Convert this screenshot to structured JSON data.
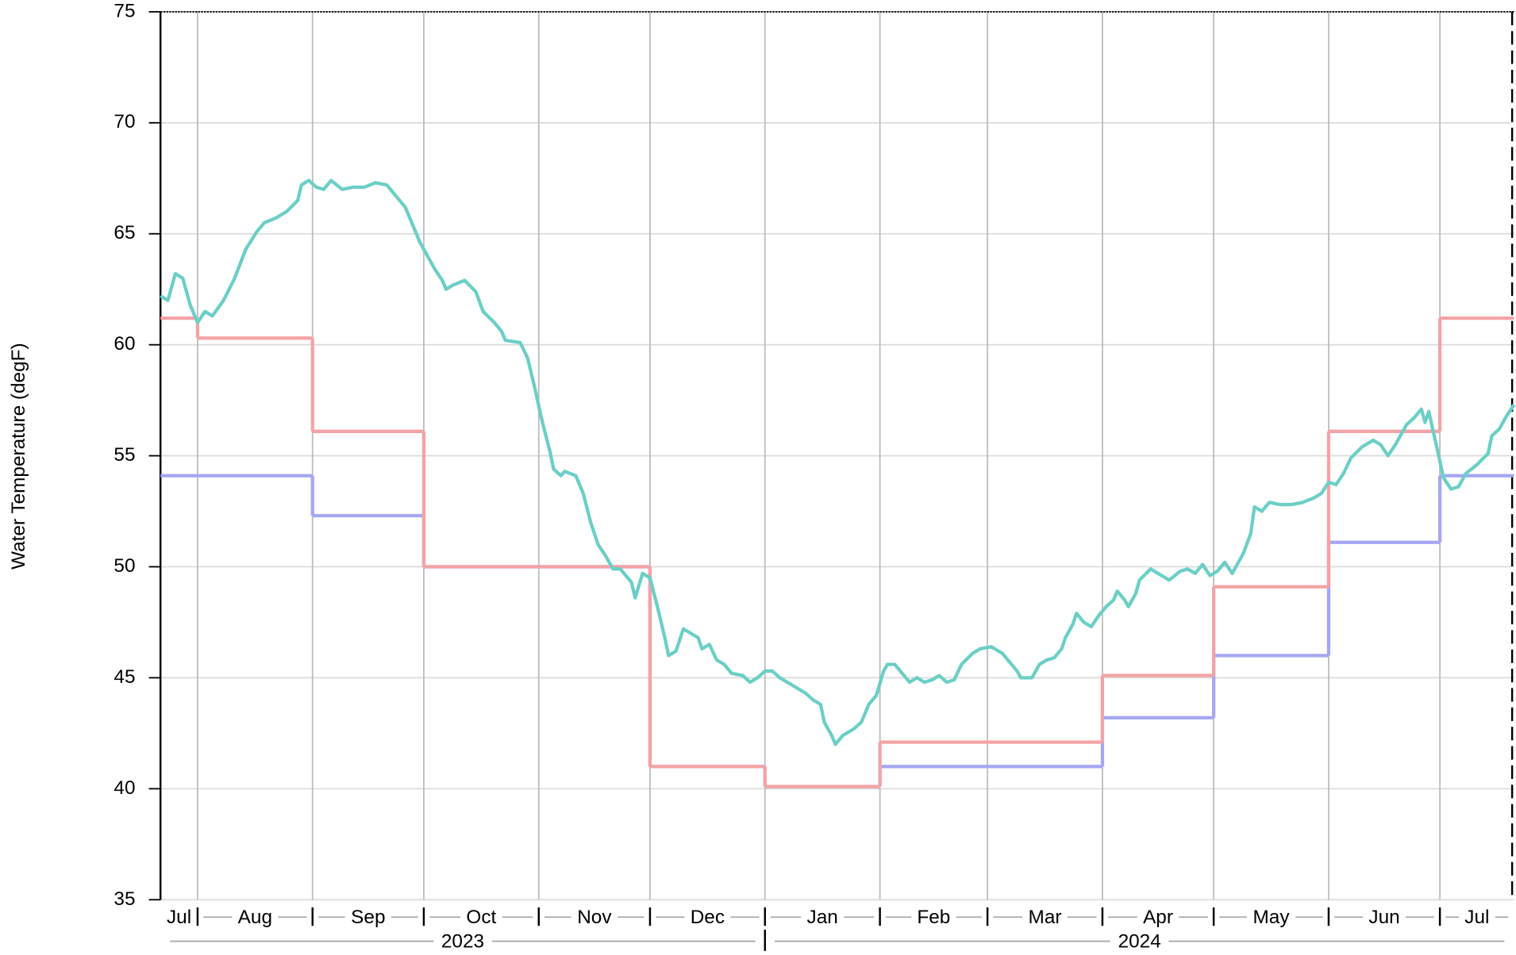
{
  "chart_data": {
    "type": "line",
    "y_label": "Water Temperature (degF)",
    "ylim": [
      35,
      75
    ],
    "yticks": [
      35,
      40,
      45,
      50,
      55,
      60,
      65,
      70,
      75
    ],
    "xlim": [
      "2023-07-22",
      "2024-07-21"
    ],
    "xticks": [
      "2023-08-01",
      "2023-09-01",
      "2023-10-01",
      "2023-11-01",
      "2023-12-01",
      "2024-01-01",
      "2024-02-01",
      "2024-03-01",
      "2024-04-01",
      "2024-05-01",
      "2024-06-01",
      "2024-07-01"
    ],
    "month_labels": [
      {
        "value": "2023-07",
        "label": "Jul"
      },
      {
        "value": "2023-08",
        "label": "Aug"
      },
      {
        "value": "2023-09",
        "label": "Sep"
      },
      {
        "value": "2023-10",
        "label": "Oct"
      },
      {
        "value": "2023-11",
        "label": "Nov"
      },
      {
        "value": "2023-12",
        "label": "Dec"
      },
      {
        "value": "2024-01",
        "label": "Jan"
      },
      {
        "value": "2024-02",
        "label": "Feb"
      },
      {
        "value": "2024-03",
        "label": "Mar"
      },
      {
        "value": "2024-04",
        "label": "Apr"
      },
      {
        "value": "2024-05",
        "label": "May"
      },
      {
        "value": "2024-06",
        "label": "Jun"
      },
      {
        "value": "2024-07",
        "label": "Jul"
      }
    ],
    "year_labels": [
      "2023",
      "2024"
    ],
    "grid": true,
    "series": [
      {
        "color": "#a6a6f4",
        "step": true,
        "x": [
          "2023-07",
          "2023-08",
          "2023-09",
          "2023-10",
          "2023-11",
          "2023-12",
          "2024-01",
          "2024-02",
          "2024-03",
          "2024-04",
          "2024-05",
          "2024-06",
          "2024-07"
        ],
        "values": [
          54.1,
          54.1,
          52.3,
          50.0,
          50.0,
          41.0,
          40.1,
          41.0,
          41.0,
          43.2,
          46.0,
          51.1,
          54.1
        ]
      },
      {
        "color": "#f5a3a6",
        "step": true,
        "x": [
          "2023-07",
          "2023-08",
          "2023-09",
          "2023-10",
          "2023-11",
          "2023-12",
          "2024-01",
          "2024-02",
          "2024-03",
          "2024-04",
          "2024-05",
          "2024-06",
          "2024-07"
        ],
        "values": [
          61.2,
          60.3,
          56.1,
          50.0,
          50.0,
          41.0,
          40.1,
          42.1,
          42.1,
          45.1,
          49.1,
          56.1,
          61.2
        ]
      },
      {
        "color": "#6bcfc6",
        "x": [
          "2023-07-22",
          "2023-07-24",
          "2023-07-26",
          "2023-07-28",
          "2023-07-30",
          "2023-08-01",
          "2023-08-03",
          "2023-08-05",
          "2023-08-08",
          "2023-08-11",
          "2023-08-14",
          "2023-08-17",
          "2023-08-19",
          "2023-08-22",
          "2023-08-25",
          "2023-08-28",
          "2023-08-29",
          "2023-08-31",
          "2023-09-02",
          "2023-09-04",
          "2023-09-06",
          "2023-09-09",
          "2023-09-12",
          "2023-09-15",
          "2023-09-18",
          "2023-09-21",
          "2023-09-23",
          "2023-09-26",
          "2023-09-28",
          "2023-09-30",
          "2023-10-02",
          "2023-10-04",
          "2023-10-06",
          "2023-10-07",
          "2023-10-09",
          "2023-10-12",
          "2023-10-15",
          "2023-10-17",
          "2023-10-20",
          "2023-10-22",
          "2023-10-23",
          "2023-10-27",
          "2023-10-29",
          "2023-10-31",
          "2023-11-02",
          "2023-11-04",
          "2023-11-05",
          "2023-11-07",
          "2023-11-08",
          "2023-11-11",
          "2023-11-13",
          "2023-11-15",
          "2023-11-17",
          "2023-11-19",
          "2023-11-21",
          "2023-11-23",
          "2023-11-26",
          "2023-11-27",
          "2023-11-29",
          "2023-12-01",
          "2023-12-03",
          "2023-12-05",
          "2023-12-06",
          "2023-12-08",
          "2023-12-10",
          "2023-12-12",
          "2023-12-14",
          "2023-12-15",
          "2023-12-17",
          "2023-12-19",
          "2023-12-21",
          "2023-12-23",
          "2023-12-26",
          "2023-12-28",
          "2023-12-30",
          "2024-01-01",
          "2024-01-03",
          "2024-01-05",
          "2024-01-08",
          "2024-01-10",
          "2024-01-12",
          "2024-01-14",
          "2024-01-16",
          "2024-01-17",
          "2024-01-19",
          "2024-01-20",
          "2024-01-22",
          "2024-01-25",
          "2024-01-27",
          "2024-01-29",
          "2024-01-31",
          "2024-02-02",
          "2024-02-03",
          "2024-02-05",
          "2024-02-07",
          "2024-02-09",
          "2024-02-11",
          "2024-02-13",
          "2024-02-15",
          "2024-02-17",
          "2024-02-19",
          "2024-02-21",
          "2024-02-23",
          "2024-02-26",
          "2024-02-28",
          "2024-03-02",
          "2024-03-05",
          "2024-03-07",
          "2024-03-09",
          "2024-03-10",
          "2024-03-13",
          "2024-03-15",
          "2024-03-17",
          "2024-03-19",
          "2024-03-21",
          "2024-03-22",
          "2024-03-24",
          "2024-03-25",
          "2024-03-27",
          "2024-03-29",
          "2024-03-31",
          "2024-04-02",
          "2024-04-04",
          "2024-04-05",
          "2024-04-07",
          "2024-04-08",
          "2024-04-10",
          "2024-04-11",
          "2024-04-14",
          "2024-04-16",
          "2024-04-19",
          "2024-04-22",
          "2024-04-24",
          "2024-04-26",
          "2024-04-28",
          "2024-04-30",
          "2024-05-02",
          "2024-05-04",
          "2024-05-06",
          "2024-05-09",
          "2024-05-11",
          "2024-05-12",
          "2024-05-14",
          "2024-05-16",
          "2024-05-19",
          "2024-05-22",
          "2024-05-25",
          "2024-05-28",
          "2024-05-30",
          "2024-06-01",
          "2024-06-03",
          "2024-06-05",
          "2024-06-07",
          "2024-06-10",
          "2024-06-13",
          "2024-06-15",
          "2024-06-17",
          "2024-06-19",
          "2024-06-22",
          "2024-06-24",
          "2024-06-26",
          "2024-06-27",
          "2024-06-28",
          "2024-06-30",
          "2024-07-02",
          "2024-07-04",
          "2024-07-06",
          "2024-07-08",
          "2024-07-11",
          "2024-07-14",
          "2024-07-15",
          "2024-07-17",
          "2024-07-19",
          "2024-07-21"
        ],
        "values": [
          62.2,
          62.0,
          63.2,
          63.0,
          61.8,
          61.0,
          61.5,
          61.3,
          62.0,
          63.0,
          64.3,
          65.1,
          65.5,
          65.7,
          66.0,
          66.5,
          67.2,
          67.4,
          67.1,
          67.0,
          67.4,
          67.0,
          67.1,
          67.1,
          67.3,
          67.2,
          66.8,
          66.2,
          65.4,
          64.6,
          64.0,
          63.4,
          62.9,
          62.5,
          62.7,
          62.9,
          62.4,
          61.5,
          61.0,
          60.6,
          60.2,
          60.1,
          59.4,
          58.0,
          56.5,
          55.2,
          54.4,
          54.1,
          54.3,
          54.1,
          53.3,
          52.0,
          51.0,
          50.5,
          49.9,
          49.9,
          49.3,
          48.6,
          49.7,
          49.5,
          48.2,
          46.8,
          46.0,
          46.2,
          47.2,
          47.0,
          46.8,
          46.3,
          46.5,
          45.8,
          45.6,
          45.2,
          45.1,
          44.8,
          45.0,
          45.3,
          45.3,
          45.0,
          44.7,
          44.5,
          44.3,
          44.0,
          43.8,
          43.0,
          42.4,
          42.0,
          42.4,
          42.7,
          43.0,
          43.8,
          44.2,
          45.3,
          45.6,
          45.6,
          45.2,
          44.8,
          45.0,
          44.8,
          44.9,
          45.1,
          44.8,
          44.9,
          45.6,
          46.1,
          46.3,
          46.4,
          46.1,
          45.7,
          45.3,
          45.0,
          45.0,
          45.6,
          45.8,
          45.9,
          46.3,
          46.8,
          47.4,
          47.9,
          47.5,
          47.3,
          47.8,
          48.2,
          48.5,
          48.9,
          48.5,
          48.2,
          48.8,
          49.4,
          49.9,
          49.7,
          49.4,
          49.8,
          49.9,
          49.7,
          50.1,
          49.6,
          49.8,
          50.2,
          49.7,
          50.6,
          51.5,
          52.7,
          52.5,
          52.9,
          52.8,
          52.8,
          52.9,
          53.1,
          53.3,
          53.8,
          53.7,
          54.2,
          54.9,
          55.4,
          55.7,
          55.5,
          55.0,
          55.5,
          56.4,
          56.7,
          57.1,
          56.5,
          57.0,
          55.5,
          54.0,
          53.5,
          53.6,
          54.2,
          54.6,
          55.1,
          55.9,
          56.2,
          56.8,
          57.3
        ]
      }
    ]
  }
}
